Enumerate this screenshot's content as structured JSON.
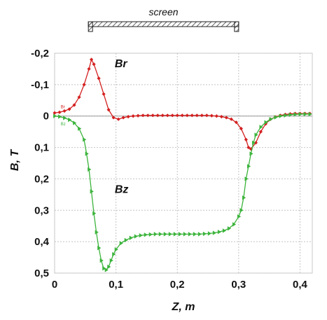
{
  "chart_data": {
    "type": "line",
    "xlabel": "Z, m",
    "ylabel": "B, T",
    "xlim": [
      0,
      0.42
    ],
    "ylim": [
      -0.2,
      0.5
    ],
    "y_inverted": true,
    "grid": true,
    "x_ticks": [
      {
        "value": 0,
        "label": "0"
      },
      {
        "value": 0.1,
        "label": "0,1"
      },
      {
        "value": 0.2,
        "label": "0,2"
      },
      {
        "value": 0.3,
        "label": "0,3"
      },
      {
        "value": 0.4,
        "label": "0,4"
      }
    ],
    "y_ticks": [
      {
        "value": -0.2,
        "label": "-0,2"
      },
      {
        "value": -0.1,
        "label": "-0,1"
      },
      {
        "value": 0,
        "label": "0"
      },
      {
        "value": 0.1,
        "label": "0,1"
      },
      {
        "value": 0.2,
        "label": "0,2"
      },
      {
        "value": 0.3,
        "label": "0,3"
      },
      {
        "value": 0.4,
        "label": "0,4"
      },
      {
        "value": 0.5,
        "label": "0,5"
      }
    ],
    "series": [
      {
        "name": "Br",
        "color": "#d42020",
        "marker": "diamond",
        "x": [
          0,
          0.008,
          0.016,
          0.024,
          0.032,
          0.04,
          0.048,
          0.056,
          0.06,
          0.064,
          0.072,
          0.08,
          0.088,
          0.096,
          0.104,
          0.112,
          0.12,
          0.128,
          0.136,
          0.144,
          0.152,
          0.16,
          0.168,
          0.176,
          0.184,
          0.192,
          0.2,
          0.208,
          0.216,
          0.224,
          0.232,
          0.24,
          0.248,
          0.256,
          0.264,
          0.272,
          0.28,
          0.288,
          0.296,
          0.304,
          0.312,
          0.316,
          0.32,
          0.328,
          0.336,
          0.344,
          0.352,
          0.36,
          0.368,
          0.376,
          0.384,
          0.392,
          0.4,
          0.408,
          0.416
        ],
        "y": [
          -0.01,
          -0.012,
          -0.016,
          -0.022,
          -0.035,
          -0.06,
          -0.1,
          -0.15,
          -0.18,
          -0.165,
          -0.12,
          -0.07,
          -0.02,
          0.005,
          0.01,
          0.005,
          0.002,
          0.0,
          -0.001,
          -0.002,
          -0.002,
          -0.002,
          -0.002,
          -0.002,
          -0.002,
          -0.002,
          -0.002,
          -0.002,
          -0.002,
          -0.002,
          -0.002,
          -0.002,
          -0.002,
          -0.001,
          0.0,
          0.002,
          0.005,
          0.01,
          0.02,
          0.04,
          0.075,
          0.1,
          0.105,
          0.085,
          0.05,
          0.025,
          0.01,
          0.003,
          -0.002,
          -0.005,
          -0.007,
          -0.008,
          -0.008,
          -0.008,
          -0.008
        ]
      },
      {
        "name": "Bz",
        "color": "#3cb43c",
        "marker": "triangle",
        "x": [
          0,
          0.008,
          0.016,
          0.024,
          0.032,
          0.04,
          0.048,
          0.052,
          0.056,
          0.06,
          0.064,
          0.068,
          0.072,
          0.076,
          0.08,
          0.084,
          0.088,
          0.092,
          0.096,
          0.1,
          0.108,
          0.116,
          0.124,
          0.132,
          0.14,
          0.148,
          0.156,
          0.164,
          0.172,
          0.18,
          0.188,
          0.196,
          0.204,
          0.212,
          0.22,
          0.228,
          0.236,
          0.244,
          0.252,
          0.26,
          0.268,
          0.276,
          0.284,
          0.292,
          0.3,
          0.304,
          0.308,
          0.312,
          0.316,
          0.32,
          0.324,
          0.328,
          0.336,
          0.344,
          0.352,
          0.36,
          0.368,
          0.376,
          0.384,
          0.392,
          0.4,
          0.408,
          0.416
        ],
        "y": [
          0.0,
          0.002,
          0.006,
          0.012,
          0.022,
          0.04,
          0.075,
          0.12,
          0.17,
          0.24,
          0.31,
          0.37,
          0.42,
          0.46,
          0.485,
          0.49,
          0.48,
          0.46,
          0.44,
          0.425,
          0.405,
          0.395,
          0.388,
          0.383,
          0.38,
          0.378,
          0.377,
          0.376,
          0.376,
          0.376,
          0.376,
          0.376,
          0.376,
          0.376,
          0.376,
          0.376,
          0.376,
          0.375,
          0.374,
          0.372,
          0.369,
          0.365,
          0.358,
          0.345,
          0.32,
          0.3,
          0.26,
          0.2,
          0.16,
          0.12,
          0.085,
          0.06,
          0.035,
          0.02,
          0.01,
          0.004,
          0.0,
          -0.002,
          -0.004,
          -0.005,
          -0.006,
          -0.006,
          -0.006
        ]
      }
    ],
    "annotations": [
      {
        "text": "Br",
        "x": 0.098,
        "y": -0.155
      },
      {
        "text": "Bz",
        "x": 0.098,
        "y": 0.245
      }
    ],
    "screen": {
      "label": "screen",
      "x_start": 0.055,
      "x_end": 0.3
    }
  },
  "tiny_labels": {
    "br": "Br",
    "bz": "Bz"
  }
}
